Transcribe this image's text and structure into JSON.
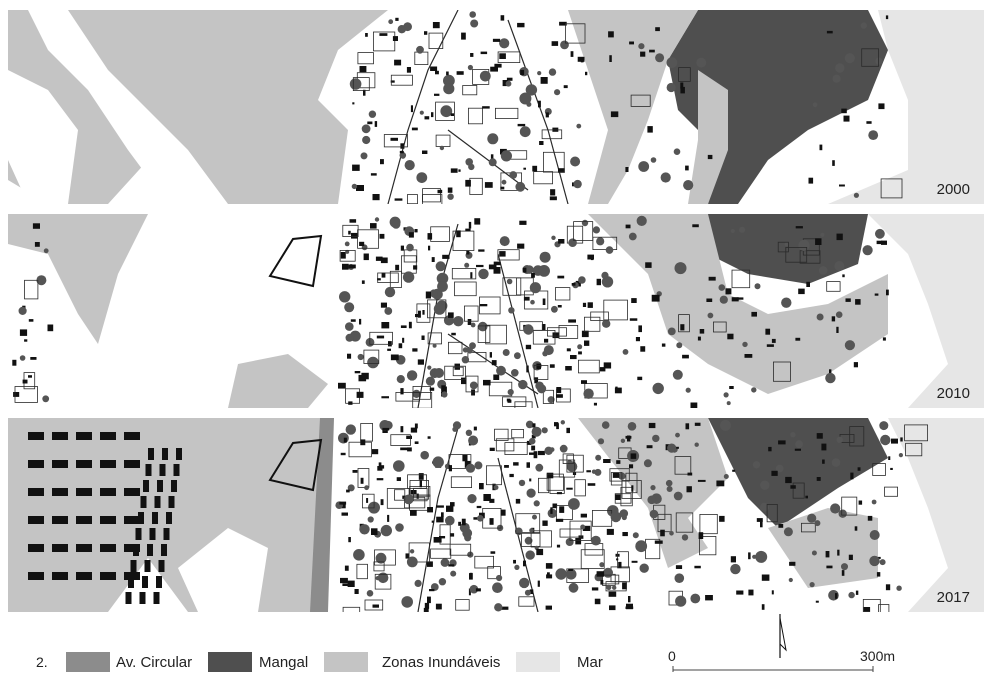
{
  "figure_number": "2.",
  "panels": [
    {
      "year": "2000"
    },
    {
      "year": "2010"
    },
    {
      "year": "2017"
    }
  ],
  "legend": {
    "items": [
      {
        "label": "Av. Circular",
        "color": "#8c8c8c"
      },
      {
        "label": "Mangal",
        "color": "#4f4f4f"
      },
      {
        "label": "Zonas Inundáveis",
        "color": "#c4c4c4"
      },
      {
        "label": "Mar",
        "color": "#e6e6e6"
      }
    ]
  },
  "scale_bar": {
    "start_label": "0",
    "end_label": "300m"
  },
  "north_arrow": "north-arrow-icon",
  "colors": {
    "background": "#ffffff",
    "building": "#111111",
    "tree": "#555555",
    "outline": "#2a2a2a"
  }
}
